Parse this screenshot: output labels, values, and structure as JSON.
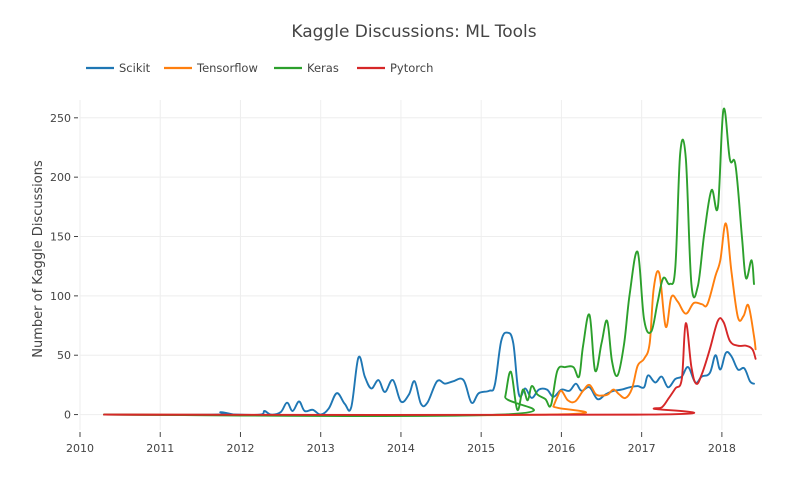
{
  "chart_data": {
    "type": "line",
    "title": "Kaggle Discussions: ML Tools",
    "xlabel": "",
    "ylabel": "Number of Kaggle Discussions",
    "xlim": [
      2010.0,
      2018.5
    ],
    "ylim": [
      -13,
      265
    ],
    "x_ticks": [
      2010,
      2011,
      2012,
      2013,
      2014,
      2015,
      2016,
      2017,
      2018
    ],
    "y_ticks": [
      0,
      50,
      100,
      150,
      200,
      250
    ],
    "legend_position": "top-left",
    "grid": true,
    "series": [
      {
        "name": "Scikit",
        "color": "#1f77b4",
        "points": [
          [
            2010.3,
            0
          ],
          [
            2011.7,
            0
          ],
          [
            2011.75,
            2
          ],
          [
            2011.85,
            1
          ],
          [
            2011.95,
            0
          ],
          [
            2012.25,
            0
          ],
          [
            2012.3,
            3
          ],
          [
            2012.38,
            0
          ],
          [
            2012.5,
            2
          ],
          [
            2012.58,
            10
          ],
          [
            2012.65,
            3
          ],
          [
            2012.73,
            11
          ],
          [
            2012.8,
            3
          ],
          [
            2012.9,
            4
          ],
          [
            2013.0,
            0
          ],
          [
            2013.1,
            5
          ],
          [
            2013.2,
            18
          ],
          [
            2013.3,
            9
          ],
          [
            2013.38,
            6
          ],
          [
            2013.47,
            48
          ],
          [
            2013.55,
            32
          ],
          [
            2013.63,
            22
          ],
          [
            2013.72,
            29
          ],
          [
            2013.8,
            19
          ],
          [
            2013.9,
            29
          ],
          [
            2014.0,
            11
          ],
          [
            2014.1,
            17
          ],
          [
            2014.17,
            28
          ],
          [
            2014.25,
            9
          ],
          [
            2014.33,
            10
          ],
          [
            2014.45,
            28
          ],
          [
            2014.55,
            26
          ],
          [
            2014.65,
            28
          ],
          [
            2014.78,
            29
          ],
          [
            2014.88,
            10
          ],
          [
            2014.97,
            18
          ],
          [
            2015.1,
            20
          ],
          [
            2015.17,
            25
          ],
          [
            2015.25,
            62
          ],
          [
            2015.33,
            69
          ],
          [
            2015.4,
            60
          ],
          [
            2015.47,
            17
          ],
          [
            2015.55,
            22
          ],
          [
            2015.63,
            14
          ],
          [
            2015.72,
            21
          ],
          [
            2015.82,
            21
          ],
          [
            2015.9,
            15
          ],
          [
            2016.0,
            21
          ],
          [
            2016.1,
            20
          ],
          [
            2016.18,
            26
          ],
          [
            2016.25,
            20
          ],
          [
            2016.35,
            23
          ],
          [
            2016.45,
            13
          ],
          [
            2016.55,
            17
          ],
          [
            2016.65,
            20
          ],
          [
            2016.75,
            21
          ],
          [
            2016.85,
            23
          ],
          [
            2016.95,
            24
          ],
          [
            2017.03,
            23
          ],
          [
            2017.08,
            33
          ],
          [
            2017.17,
            27
          ],
          [
            2017.25,
            32
          ],
          [
            2017.33,
            23
          ],
          [
            2017.42,
            30
          ],
          [
            2017.5,
            32
          ],
          [
            2017.58,
            40
          ],
          [
            2017.67,
            27
          ],
          [
            2017.75,
            32
          ],
          [
            2017.85,
            35
          ],
          [
            2017.92,
            50
          ],
          [
            2017.98,
            38
          ],
          [
            2018.05,
            52
          ],
          [
            2018.12,
            49
          ],
          [
            2018.2,
            38
          ],
          [
            2018.28,
            39
          ],
          [
            2018.35,
            28
          ],
          [
            2018.4,
            26
          ]
        ]
      },
      {
        "name": "Tensorflow",
        "color": "#ff7f0e",
        "points": [
          [
            2010.3,
            0
          ],
          [
            2015.85,
            0
          ],
          [
            2015.9,
            7
          ],
          [
            2015.95,
            15
          ],
          [
            2016.0,
            20
          ],
          [
            2016.08,
            12
          ],
          [
            2016.17,
            11
          ],
          [
            2016.27,
            20
          ],
          [
            2016.35,
            25
          ],
          [
            2016.43,
            17
          ],
          [
            2016.5,
            16
          ],
          [
            2016.58,
            17
          ],
          [
            2016.65,
            21
          ],
          [
            2016.72,
            17
          ],
          [
            2016.8,
            14
          ],
          [
            2016.88,
            22
          ],
          [
            2016.95,
            41
          ],
          [
            2017.03,
            47
          ],
          [
            2017.1,
            60
          ],
          [
            2017.15,
            106
          ],
          [
            2017.22,
            119
          ],
          [
            2017.3,
            74
          ],
          [
            2017.37,
            99
          ],
          [
            2017.45,
            95
          ],
          [
            2017.55,
            85
          ],
          [
            2017.65,
            94
          ],
          [
            2017.75,
            93
          ],
          [
            2017.82,
            93
          ],
          [
            2017.92,
            117
          ],
          [
            2017.98,
            130
          ],
          [
            2018.05,
            161
          ],
          [
            2018.12,
            120
          ],
          [
            2018.2,
            82
          ],
          [
            2018.27,
            83
          ],
          [
            2018.33,
            92
          ],
          [
            2018.4,
            66
          ],
          [
            2018.42,
            55
          ]
        ]
      },
      {
        "name": "Keras",
        "color": "#2ca02c",
        "points": [
          [
            2010.3,
            0
          ],
          [
            2015.25,
            0
          ],
          [
            2015.3,
            15
          ],
          [
            2015.37,
            36
          ],
          [
            2015.45,
            4
          ],
          [
            2015.52,
            21
          ],
          [
            2015.58,
            12
          ],
          [
            2015.63,
            24
          ],
          [
            2015.7,
            17
          ],
          [
            2015.8,
            13
          ],
          [
            2015.87,
            8
          ],
          [
            2015.95,
            37
          ],
          [
            2016.05,
            40
          ],
          [
            2016.15,
            40
          ],
          [
            2016.22,
            32
          ],
          [
            2016.27,
            58
          ],
          [
            2016.35,
            84
          ],
          [
            2016.42,
            37
          ],
          [
            2016.5,
            60
          ],
          [
            2016.57,
            79
          ],
          [
            2016.63,
            45
          ],
          [
            2016.7,
            33
          ],
          [
            2016.78,
            59
          ],
          [
            2016.85,
            101
          ],
          [
            2016.95,
            137
          ],
          [
            2017.03,
            80
          ],
          [
            2017.12,
            70
          ],
          [
            2017.2,
            95
          ],
          [
            2017.27,
            115
          ],
          [
            2017.35,
            110
          ],
          [
            2017.42,
            124
          ],
          [
            2017.48,
            220
          ],
          [
            2017.55,
            216
          ],
          [
            2017.62,
            110
          ],
          [
            2017.7,
            108
          ],
          [
            2017.78,
            152
          ],
          [
            2017.87,
            189
          ],
          [
            2017.95,
            175
          ],
          [
            2018.02,
            257
          ],
          [
            2018.1,
            215
          ],
          [
            2018.17,
            210
          ],
          [
            2018.25,
            150
          ],
          [
            2018.3,
            115
          ],
          [
            2018.37,
            130
          ],
          [
            2018.4,
            110
          ]
        ]
      },
      {
        "name": "Pytorch",
        "color": "#d62728",
        "points": [
          [
            2010.3,
            0
          ],
          [
            2017.1,
            0
          ],
          [
            2017.15,
            5
          ],
          [
            2017.25,
            6
          ],
          [
            2017.33,
            13
          ],
          [
            2017.42,
            22
          ],
          [
            2017.5,
            30
          ],
          [
            2017.55,
            77
          ],
          [
            2017.62,
            40
          ],
          [
            2017.68,
            26
          ],
          [
            2017.75,
            34
          ],
          [
            2017.85,
            55
          ],
          [
            2017.95,
            79
          ],
          [
            2018.02,
            78
          ],
          [
            2018.1,
            62
          ],
          [
            2018.2,
            58
          ],
          [
            2018.3,
            58
          ],
          [
            2018.38,
            55
          ],
          [
            2018.42,
            47
          ]
        ]
      }
    ]
  }
}
